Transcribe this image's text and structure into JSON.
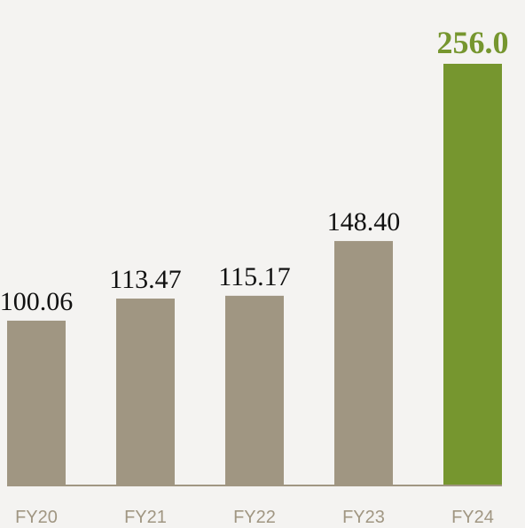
{
  "chart_data": {
    "type": "bar",
    "categories": [
      "FY20",
      "FY21",
      "FY22",
      "FY23",
      "FY24"
    ],
    "values": [
      100.06,
      113.47,
      115.17,
      148.4,
      256.0
    ],
    "value_labels": [
      "100.06",
      "113.47",
      "115.17",
      "148.40",
      "256.0"
    ],
    "colors": [
      "#a09682",
      "#a09682",
      "#a09682",
      "#a09682",
      "#76962f"
    ],
    "label_colors": [
      "#111111",
      "#111111",
      "#111111",
      "#111111",
      "#76962f"
    ]
  }
}
